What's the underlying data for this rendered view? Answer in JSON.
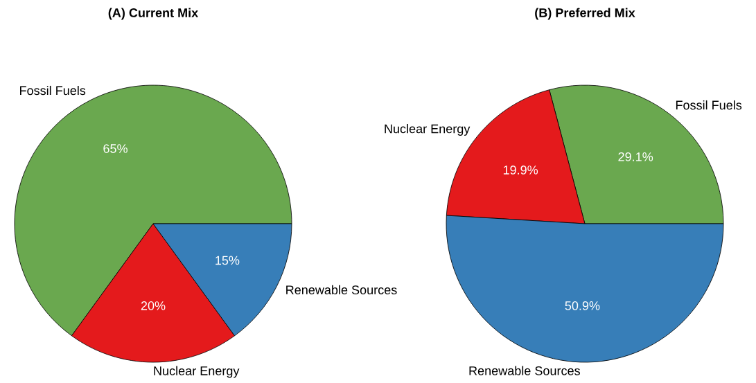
{
  "chart_data": [
    {
      "type": "pie",
      "title": "(A) Current Mix",
      "categories": [
        "Fossil Fuels",
        "Nuclear Energy",
        "Renewable Sources"
      ],
      "values": [
        65,
        20,
        15
      ],
      "value_labels": [
        "65%",
        "20%",
        "15%"
      ],
      "colors": [
        "#6aa84f",
        "#e41a1c",
        "#377eb8"
      ],
      "legend": false
    },
    {
      "type": "pie",
      "title": "(B) Preferred Mix",
      "categories": [
        "Fossil Fuels",
        "Nuclear Energy",
        "Renewable Sources"
      ],
      "values": [
        29.1,
        19.9,
        50.9
      ],
      "value_labels": [
        "29.1%",
        "19.9%",
        "50.9%"
      ],
      "colors": [
        "#6aa84f",
        "#e41a1c",
        "#377eb8"
      ],
      "legend": false
    }
  ]
}
